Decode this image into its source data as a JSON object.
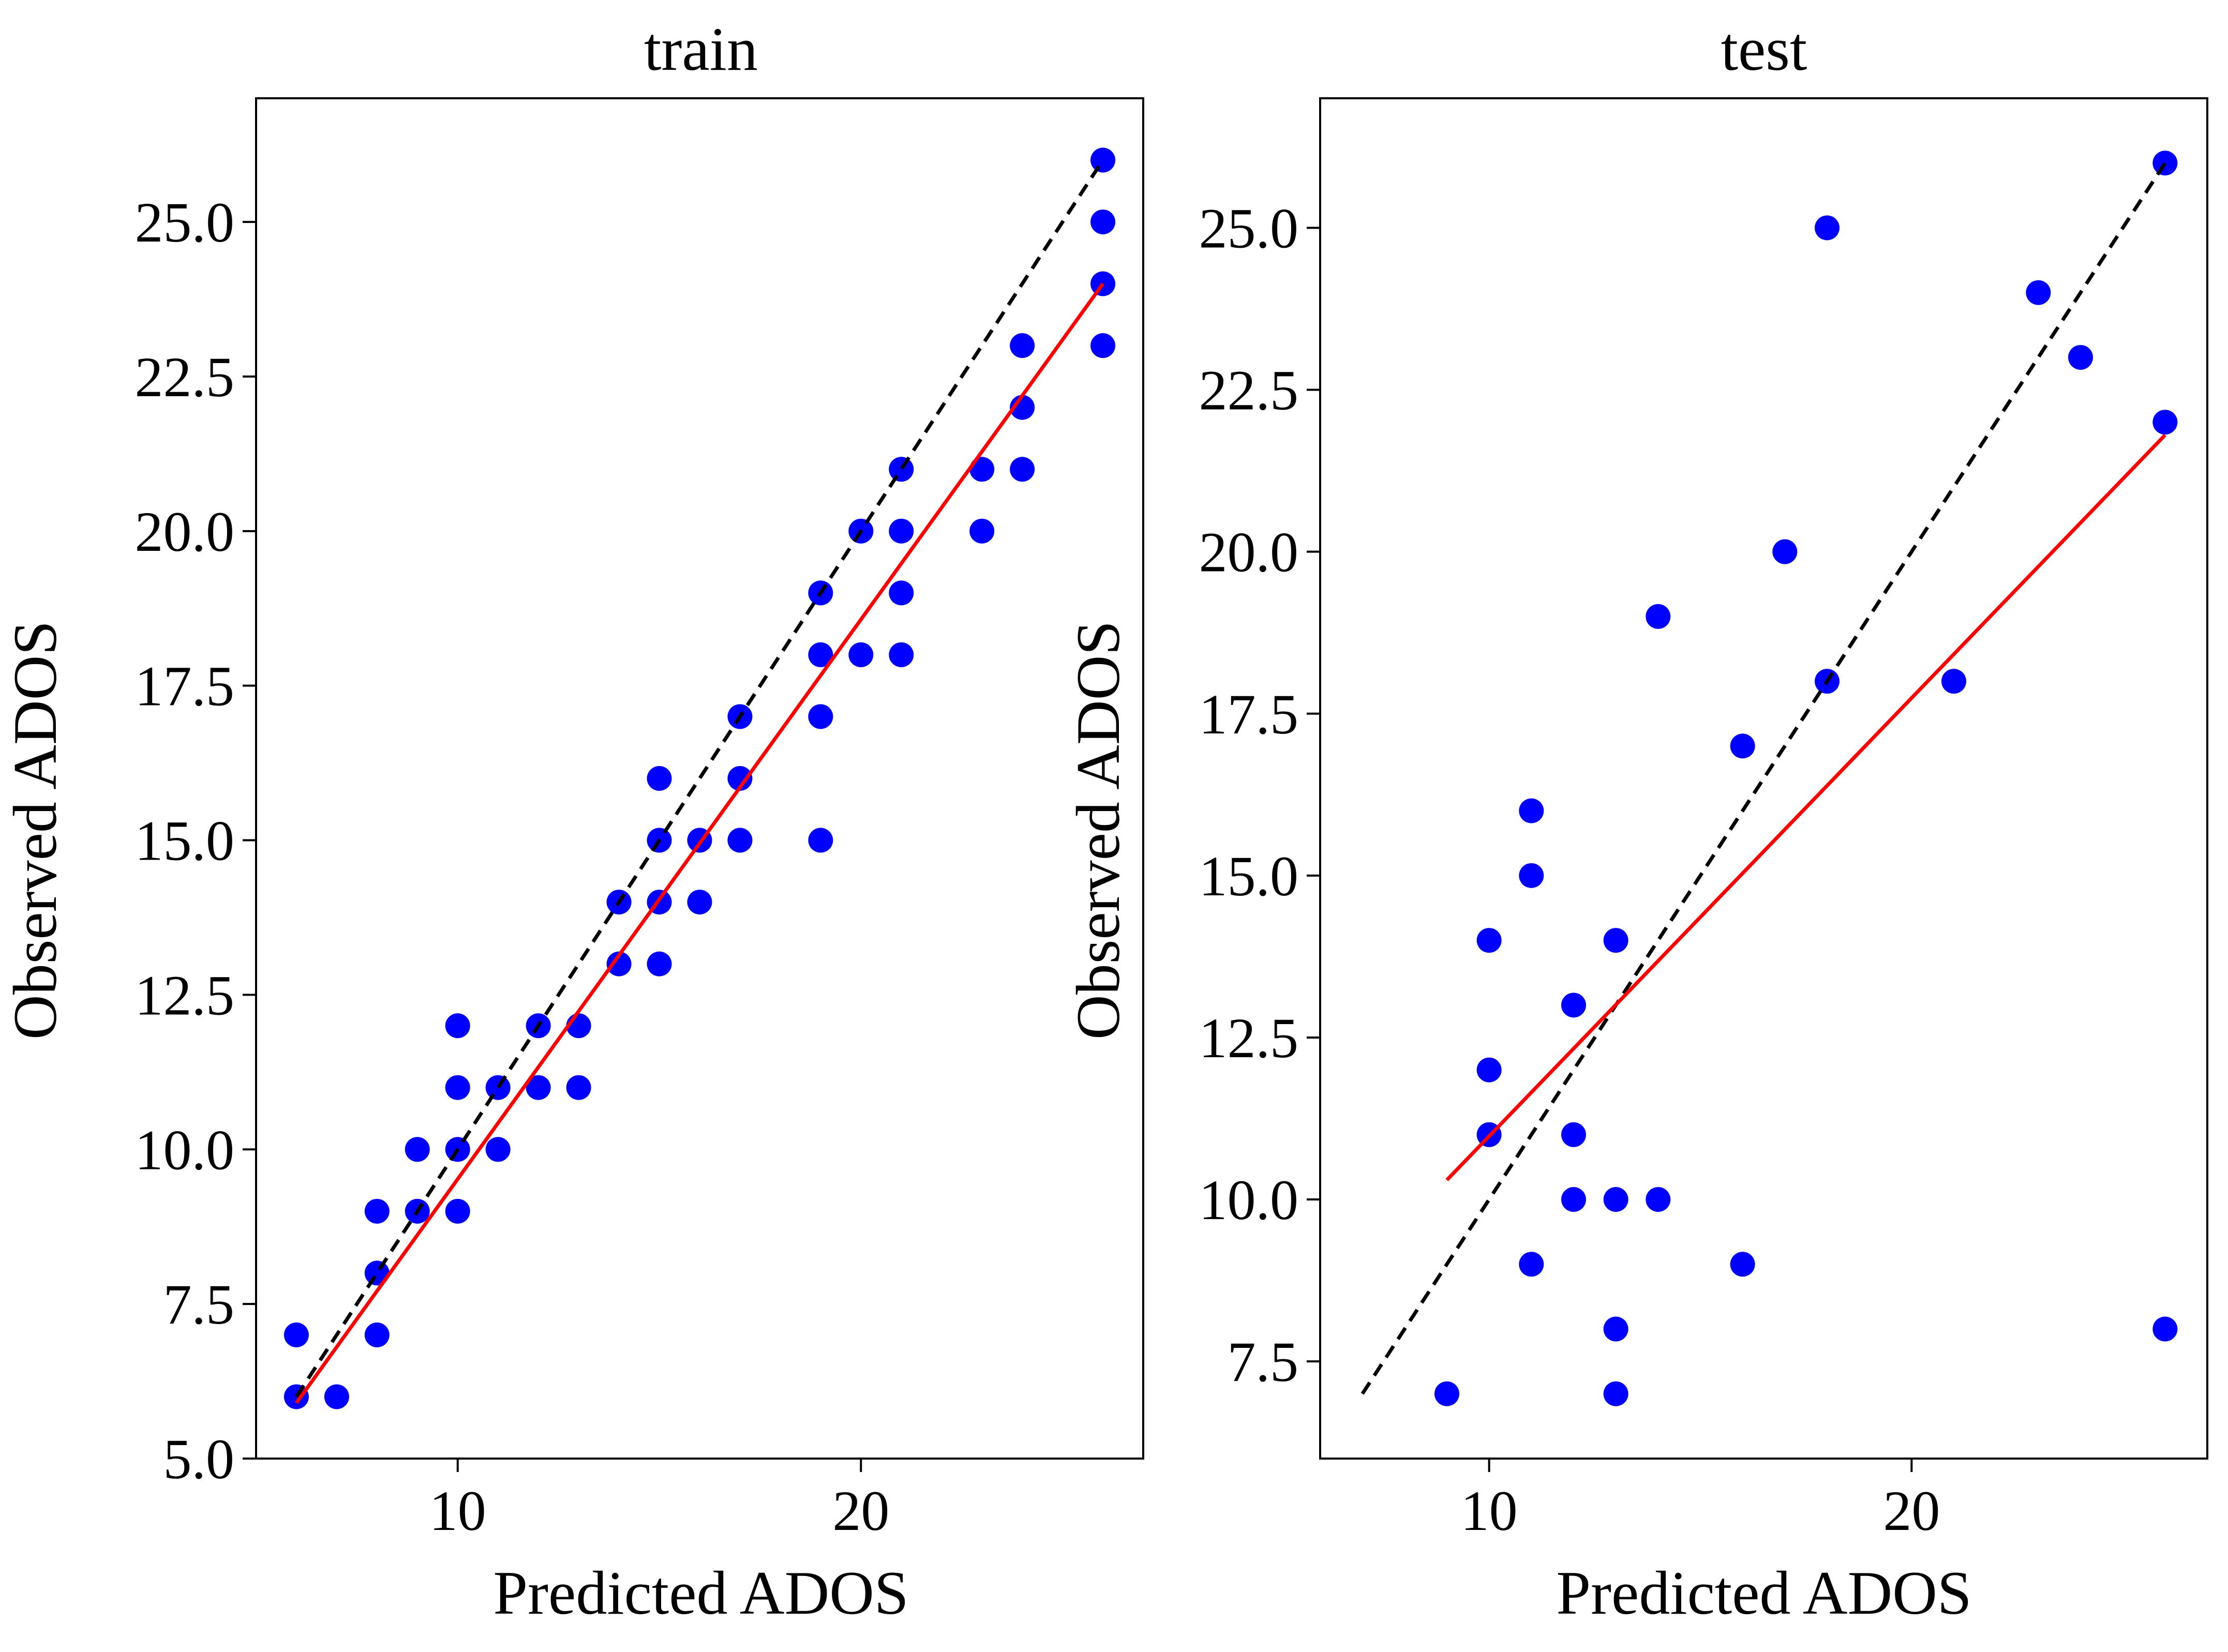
{
  "chart_data": [
    {
      "type": "scatter",
      "title": "train",
      "xlabel": "Predicted ADOS",
      "ylabel": "Observed ADOS",
      "xlim": [
        5.0,
        27.0
      ],
      "ylim": [
        5.0,
        27.0
      ],
      "xticks": [
        10,
        20
      ],
      "yticks": [
        5.0,
        7.5,
        10.0,
        12.5,
        15.0,
        17.5,
        20.0,
        22.5,
        25.0
      ],
      "grid": false,
      "points": [
        [
          6,
          6
        ],
        [
          6,
          7
        ],
        [
          7,
          6
        ],
        [
          8,
          7
        ],
        [
          8,
          8
        ],
        [
          8,
          9
        ],
        [
          9,
          9
        ],
        [
          9,
          10
        ],
        [
          10,
          9
        ],
        [
          10,
          10
        ],
        [
          10,
          11
        ],
        [
          10,
          12
        ],
        [
          11,
          10
        ],
        [
          11,
          11
        ],
        [
          12,
          11
        ],
        [
          12,
          12
        ],
        [
          13,
          11
        ],
        [
          13,
          12
        ],
        [
          14,
          13
        ],
        [
          14,
          14
        ],
        [
          15,
          13
        ],
        [
          15,
          14
        ],
        [
          15,
          15
        ],
        [
          15,
          16
        ],
        [
          16,
          14
        ],
        [
          16,
          15
        ],
        [
          17,
          15
        ],
        [
          17,
          16
        ],
        [
          17,
          17
        ],
        [
          19,
          15
        ],
        [
          19,
          17
        ],
        [
          19,
          18
        ],
        [
          19,
          19
        ],
        [
          20,
          18
        ],
        [
          20,
          20
        ],
        [
          21,
          18
        ],
        [
          21,
          19
        ],
        [
          21,
          20
        ],
        [
          21,
          21
        ],
        [
          23,
          20
        ],
        [
          23,
          21
        ],
        [
          24,
          21
        ],
        [
          24,
          22
        ],
        [
          24,
          23
        ],
        [
          26,
          23
        ],
        [
          26,
          24
        ],
        [
          26,
          25
        ],
        [
          26,
          26
        ]
      ],
      "identity_line": {
        "x": [
          6,
          26
        ],
        "y": [
          6,
          26
        ],
        "style": "dashed",
        "color": "#000000"
      },
      "fit_line": {
        "x": [
          6,
          26
        ],
        "y": [
          5.9,
          24.0
        ],
        "color": "#ff0000"
      }
    },
    {
      "type": "scatter",
      "title": "test",
      "xlabel": "Predicted ADOS",
      "ylabel": "Observed ADOS",
      "xlim": [
        6.0,
        27.0
      ],
      "ylim": [
        6.0,
        27.0
      ],
      "xticks": [
        10,
        20
      ],
      "yticks": [
        7.5,
        10.0,
        12.5,
        15.0,
        17.5,
        20.0,
        22.5,
        25.0
      ],
      "grid": false,
      "points": [
        [
          9,
          7
        ],
        [
          10,
          11
        ],
        [
          10,
          12
        ],
        [
          10,
          14
        ],
        [
          11,
          9
        ],
        [
          11,
          15
        ],
        [
          11,
          16
        ],
        [
          12,
          10
        ],
        [
          12,
          11
        ],
        [
          12,
          13
        ],
        [
          13,
          7
        ],
        [
          13,
          8
        ],
        [
          13,
          10
        ],
        [
          13,
          14
        ],
        [
          14,
          10
        ],
        [
          14,
          19
        ],
        [
          16,
          9
        ],
        [
          16,
          17
        ],
        [
          17,
          20
        ],
        [
          18,
          18
        ],
        [
          18,
          25
        ],
        [
          21,
          18
        ],
        [
          23,
          24
        ],
        [
          24,
          23
        ],
        [
          26,
          8
        ],
        [
          26,
          22
        ],
        [
          26,
          26
        ]
      ],
      "identity_line": {
        "x": [
          7,
          26
        ],
        "y": [
          7,
          26
        ],
        "style": "dashed",
        "color": "#000000"
      },
      "fit_line": {
        "x": [
          9,
          26
        ],
        "y": [
          10.3,
          21.8
        ],
        "color": "#ff0000"
      }
    }
  ],
  "colors": {
    "points": "#0000ff",
    "fit": "#ff0000",
    "identity": "#000000"
  }
}
